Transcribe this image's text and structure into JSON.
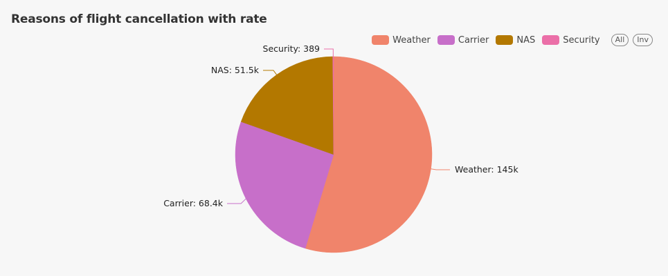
{
  "chart_data": {
    "type": "pie",
    "title": "Reasons of flight cancellation with rate",
    "slices": [
      {
        "name": "Weather",
        "value": 145000,
        "label": "Weather: 145k",
        "color": "#f0846b"
      },
      {
        "name": "Carrier",
        "value": 68400,
        "label": "Carrier: 68.4k",
        "color": "#c76fc9"
      },
      {
        "name": "NAS",
        "value": 51500,
        "label": "NAS: 51.5k",
        "color": "#b37800"
      },
      {
        "name": "Security",
        "value": 389,
        "label": "Security: 389",
        "color": "#eb6fa8"
      }
    ],
    "legend_position": "top-right",
    "legend_buttons": [
      "All",
      "Inv"
    ]
  }
}
